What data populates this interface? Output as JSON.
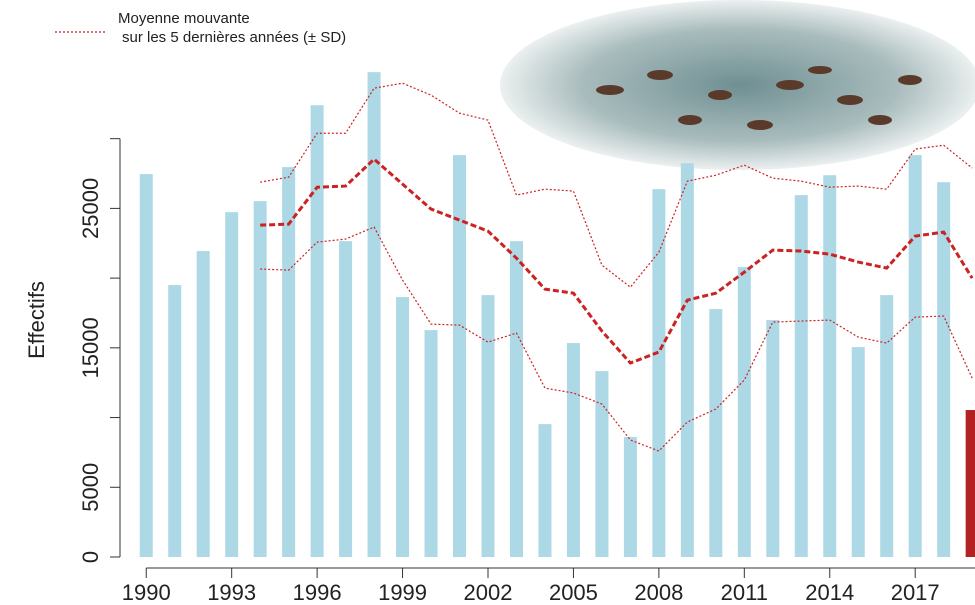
{
  "chart_data": {
    "type": "bar",
    "y_label": "Effectifs",
    "legend": [
      "Moyenne mouvante",
      "sur les 5 dernières années (± SD)"
    ],
    "x": [
      1990,
      1991,
      1992,
      1993,
      1994,
      1995,
      1996,
      1997,
      1998,
      1999,
      2000,
      2001,
      2002,
      2003,
      2004,
      2005,
      2006,
      2007,
      2008,
      2009,
      2010,
      2011,
      2012,
      2013,
      2014,
      2015,
      2016,
      2017,
      2018,
      2019
    ],
    "xlim": [
      1989.5,
      2019.1
    ],
    "xticks": [
      1990,
      1993,
      1996,
      1999,
      2002,
      2005,
      2008,
      2011,
      2014,
      2017
    ],
    "ylim": [
      0,
      36000
    ],
    "yticks": [
      0,
      5000,
      {
        "value": 10000,
        "label": null
      },
      15000,
      {
        "value": 20000,
        "label": null
      },
      25000,
      {
        "value": 30000,
        "label": null
      }
    ],
    "bars": {
      "values": [
        27460,
        19500,
        21940,
        24730,
        25520,
        27960,
        32400,
        22650,
        34770,
        18640,
        16270,
        28820,
        18780,
        22650,
        9530,
        15340,
        13330,
        8600,
        26380,
        28240,
        17780,
        20790,
        16990,
        25950,
        27380,
        15050,
        18780,
        28820,
        26880,
        10540
      ],
      "colors": [
        "#add8e6",
        "#add8e6",
        "#add8e6",
        "#add8e6",
        "#add8e6",
        "#add8e6",
        "#add8e6",
        "#add8e6",
        "#add8e6",
        "#add8e6",
        "#add8e6",
        "#add8e6",
        "#add8e6",
        "#add8e6",
        "#add8e6",
        "#add8e6",
        "#add8e6",
        "#add8e6",
        "#add8e6",
        "#add8e6",
        "#add8e6",
        "#add8e6",
        "#add8e6",
        "#add8e6",
        "#add8e6",
        "#add8e6",
        "#add8e6",
        "#add8e6",
        "#add8e6",
        "#b22222"
      ]
    },
    "lines": [
      {
        "color": "#cc2222",
        "style": "dashed",
        "values": [
          null,
          null,
          null,
          null,
          23800,
          23870,
          26520,
          26600,
          28530,
          26740,
          24950,
          24160,
          23370,
          21430,
          19210,
          18920,
          16200,
          13910,
          14700,
          18420,
          18920,
          20430,
          22010,
          21940,
          21720,
          21150,
          20720,
          23010,
          23300,
          20000
        ]
      },
      {
        "color": "#cc2222",
        "style": "dotted",
        "values": [
          null,
          null,
          null,
          null,
          26880,
          27240,
          30390,
          30390,
          33620,
          33980,
          33120,
          31830,
          31330,
          25950,
          26380,
          26240,
          20930,
          19350,
          21860,
          26950,
          27380,
          28100,
          27170,
          26950,
          26520,
          26600,
          26380,
          29250,
          29530,
          27890
        ]
      },
      {
        "color": "#cc2222",
        "style": "dotted",
        "values": [
          null,
          null,
          null,
          null,
          20650,
          20570,
          22580,
          22800,
          23660,
          19860,
          16700,
          16630,
          15410,
          16060,
          12110,
          11760,
          10970,
          8390,
          7600,
          9680,
          10610,
          12690,
          16850,
          16920,
          16990,
          15770,
          15340,
          17200,
          17280,
          12830
        ]
      }
    ]
  }
}
